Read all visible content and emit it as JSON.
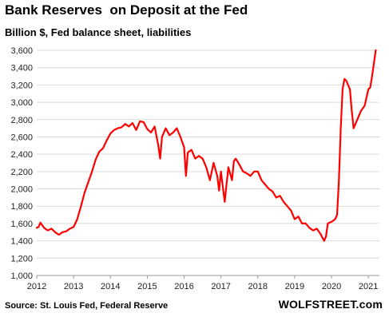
{
  "chart_data": {
    "type": "line",
    "title": "Bank Reserves  on Deposit at the Fed",
    "subtitle": "Billion $, Fed balance sheet, liabilities",
    "xlabel": "",
    "ylabel": "",
    "ylim": [
      1000,
      3600
    ],
    "xlim": [
      2012.0,
      2021.3
    ],
    "yticks": [
      1000,
      1200,
      1400,
      1600,
      1800,
      2000,
      2200,
      2400,
      2600,
      2800,
      3000,
      3200,
      3400,
      3600
    ],
    "ytick_labels": [
      "1,000",
      "1,200",
      "1,400",
      "1,600",
      "1,800",
      "2,000",
      "2,200",
      "2,400",
      "2,600",
      "2,800",
      "3,000",
      "3,200",
      "3,400",
      "3,600"
    ],
    "xticks": [
      2012,
      2013,
      2014,
      2015,
      2016,
      2017,
      2018,
      2019,
      2020,
      2021
    ],
    "xtick_labels": [
      "2012",
      "2013",
      "2014",
      "2015",
      "2016",
      "2017",
      "2018",
      "2019",
      "2020",
      "2021"
    ],
    "grid": "horizontal",
    "series": [
      {
        "color": "#ff0000",
        "x": [
          2012.0,
          2012.05,
          2012.1,
          2012.15,
          2012.2,
          2012.3,
          2012.4,
          2012.5,
          2012.6,
          2012.7,
          2012.8,
          2012.9,
          2013.0,
          2013.1,
          2013.2,
          2013.3,
          2013.4,
          2013.5,
          2013.6,
          2013.7,
          2013.8,
          2013.9,
          2014.0,
          2014.1,
          2014.2,
          2014.3,
          2014.4,
          2014.5,
          2014.6,
          2014.7,
          2014.8,
          2014.9,
          2015.0,
          2015.1,
          2015.2,
          2015.3,
          2015.35,
          2015.4,
          2015.5,
          2015.6,
          2015.7,
          2015.8,
          2015.9,
          2016.0,
          2016.05,
          2016.1,
          2016.2,
          2016.3,
          2016.4,
          2016.5,
          2016.6,
          2016.7,
          2016.8,
          2016.9,
          2016.95,
          2017.0,
          2017.1,
          2017.2,
          2017.3,
          2017.35,
          2017.4,
          2017.5,
          2017.6,
          2017.7,
          2017.8,
          2017.9,
          2018.0,
          2018.1,
          2018.2,
          2018.3,
          2018.4,
          2018.5,
          2018.6,
          2018.7,
          2018.8,
          2018.9,
          2019.0,
          2019.1,
          2019.2,
          2019.3,
          2019.4,
          2019.5,
          2019.6,
          2019.7,
          2019.8,
          2019.85,
          2019.9,
          2020.0,
          2020.1,
          2020.15,
          2020.2,
          2020.25,
          2020.3,
          2020.35,
          2020.4,
          2020.5,
          2020.55,
          2020.6,
          2020.7,
          2020.8,
          2020.9,
          2021.0,
          2021.05,
          2021.1,
          2021.15,
          2021.2
        ],
        "values": [
          1550,
          1560,
          1610,
          1580,
          1550,
          1520,
          1540,
          1500,
          1470,
          1500,
          1510,
          1540,
          1560,
          1650,
          1800,
          1960,
          2080,
          2200,
          2340,
          2430,
          2470,
          2560,
          2640,
          2680,
          2700,
          2710,
          2750,
          2720,
          2760,
          2680,
          2780,
          2770,
          2690,
          2650,
          2720,
          2500,
          2350,
          2600,
          2700,
          2620,
          2650,
          2700,
          2600,
          2480,
          2150,
          2420,
          2450,
          2350,
          2380,
          2350,
          2250,
          2100,
          2300,
          2150,
          1980,
          2200,
          1850,
          2250,
          2100,
          2320,
          2350,
          2280,
          2200,
          2180,
          2150,
          2200,
          2200,
          2100,
          2050,
          2000,
          1970,
          1900,
          1920,
          1850,
          1800,
          1750,
          1650,
          1680,
          1600,
          1600,
          1550,
          1520,
          1540,
          1480,
          1400,
          1450,
          1600,
          1620,
          1650,
          1700,
          2100,
          2700,
          3150,
          3270,
          3250,
          3150,
          2900,
          2700,
          2800,
          2900,
          2960,
          3150,
          3170,
          3300,
          3450,
          3600
        ]
      }
    ],
    "source": "Source: St. Louis Fed, Federal Reserve",
    "brand": "WOLFSTREET.com"
  }
}
